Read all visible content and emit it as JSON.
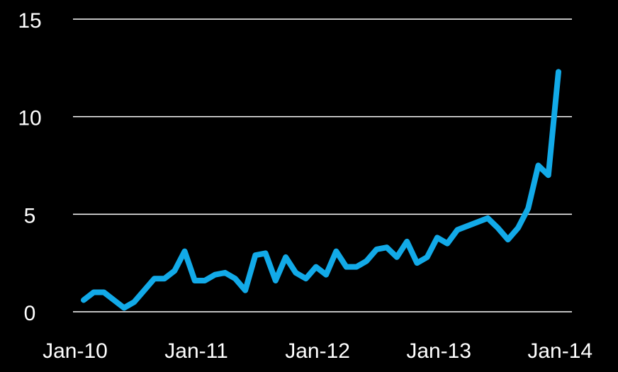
{
  "chart_data": {
    "type": "line",
    "categories": [
      "Jan-10",
      null,
      null,
      null,
      null,
      null,
      null,
      null,
      null,
      null,
      null,
      null,
      "Jan-11",
      null,
      null,
      null,
      null,
      null,
      null,
      null,
      null,
      null,
      null,
      null,
      "Jan-12",
      null,
      null,
      null,
      null,
      null,
      null,
      null,
      null,
      null,
      null,
      null,
      "Jan-13",
      null,
      null,
      null,
      null,
      null,
      null,
      null,
      null,
      null,
      null,
      null,
      "Jan-14"
    ],
    "series": [
      {
        "name": null,
        "color": "#12aae8",
        "values": [
          0.6,
          1.0,
          1.0,
          0.6,
          0.2,
          0.5,
          1.1,
          1.7,
          1.7,
          2.1,
          3.1,
          1.6,
          1.6,
          1.9,
          2.0,
          1.7,
          1.1,
          2.9,
          3.0,
          1.6,
          2.8,
          2.0,
          1.7,
          2.3,
          1.9,
          3.1,
          2.3,
          2.3,
          2.6,
          3.2,
          3.3,
          2.8,
          3.6,
          2.5,
          2.8,
          3.8,
          3.5,
          4.2,
          4.4,
          4.6,
          4.8,
          4.3,
          3.7,
          4.3,
          5.3,
          7.5,
          7.0,
          12.3,
          null
        ]
      }
    ],
    "ylim": [
      0,
      15
    ],
    "yticks": [
      0,
      5,
      10,
      15
    ],
    "grid": true
  }
}
